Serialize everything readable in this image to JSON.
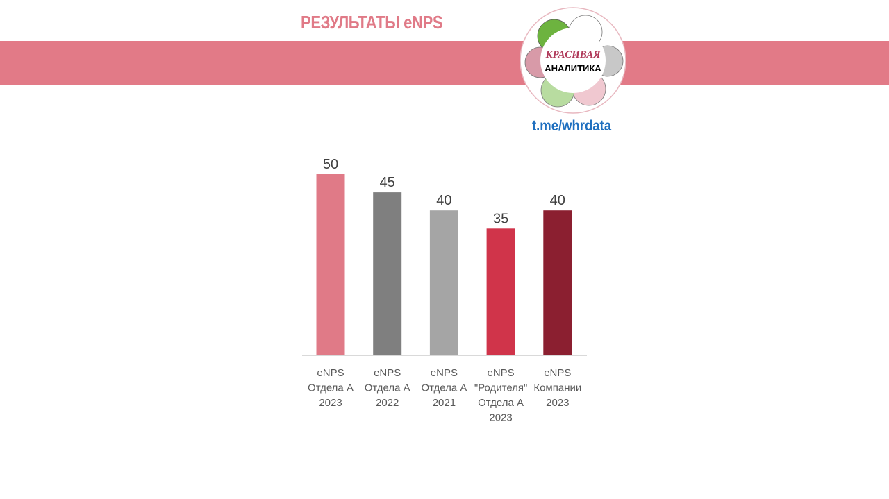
{
  "header": {
    "title": "РЕЗУЛЬТАТЫ eNPS",
    "band_color": "#e27a87"
  },
  "logo": {
    "line1": "КРАСИВАЯ",
    "line2": "АНАЛИТИКА"
  },
  "link": "t.me/whrdata",
  "chart_data": {
    "type": "bar",
    "categories": [
      [
        "eNPS",
        "Отдела А",
        "2023"
      ],
      [
        "eNPS",
        "Отдела А",
        "2022"
      ],
      [
        "eNPS",
        "Отдела А",
        "2021"
      ],
      [
        "eNPS",
        "\"Родителя\"",
        "Отдела А",
        "2023"
      ],
      [
        "eNPS",
        "Компании",
        "2023"
      ]
    ],
    "values": [
      50,
      45,
      40,
      35,
      40
    ],
    "colors": [
      "#e07a87",
      "#7f7f7f",
      "#a5a5a5",
      "#d0344a",
      "#8b1f30"
    ],
    "data_labels": true,
    "ylim": [
      0,
      50
    ],
    "grid": false,
    "title": "",
    "xlabel": "",
    "ylabel": ""
  }
}
